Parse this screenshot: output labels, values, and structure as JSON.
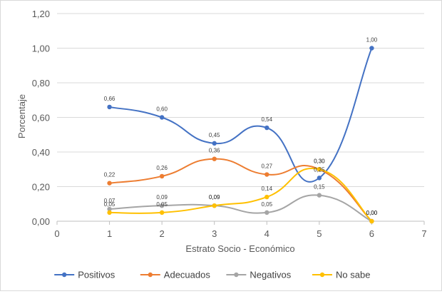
{
  "chart_data": {
    "type": "scatter",
    "xlabel": "Estrato Socio - Económico",
    "ylabel": "Porcentaje",
    "xlim": [
      0,
      7
    ],
    "ylim": [
      0,
      1.2
    ],
    "x_ticks": [
      "0",
      "1",
      "2",
      "3",
      "4",
      "5",
      "6",
      "7"
    ],
    "y_ticks": [
      "0,00",
      "0,20",
      "0,40",
      "0,60",
      "0,80",
      "1,00",
      "1,20"
    ],
    "grid": "horizontal",
    "smooth": true,
    "legend_position": "bottom",
    "x": [
      1,
      2,
      3,
      4,
      5,
      6
    ],
    "series": [
      {
        "name": "Positivos",
        "color": "#4472C4",
        "values": [
          0.66,
          0.6,
          0.45,
          0.54,
          0.25,
          1.0
        ],
        "labels": [
          "0,66",
          "0,60",
          "0,45",
          "0,54",
          "",
          "1,00"
        ]
      },
      {
        "name": "Adecuados",
        "color": "#ED7D31",
        "values": [
          0.22,
          0.26,
          0.36,
          0.27,
          0.3,
          0.0
        ],
        "labels": [
          "0,22",
          "0,26",
          "0,36",
          "0,27",
          "0,30",
          "0,00"
        ]
      },
      {
        "name": "Negativos",
        "color": "#A5A5A5",
        "values": [
          0.07,
          0.09,
          0.09,
          0.05,
          0.15,
          0.0
        ],
        "labels": [
          "0,07",
          "0,09",
          "0,09",
          "0,05",
          "0,15",
          "0,00"
        ]
      },
      {
        "name": "No sabe",
        "color": "#FFC000",
        "values": [
          0.05,
          0.05,
          0.09,
          0.14,
          0.3,
          0.0
        ],
        "labels": [
          "0,05",
          "0,05",
          "0,09",
          "0,14",
          "0,30",
          "0,00"
        ]
      }
    ]
  },
  "extra_labels": [
    {
      "x": 5,
      "value": 0.25,
      "text": "0,25"
    }
  ]
}
